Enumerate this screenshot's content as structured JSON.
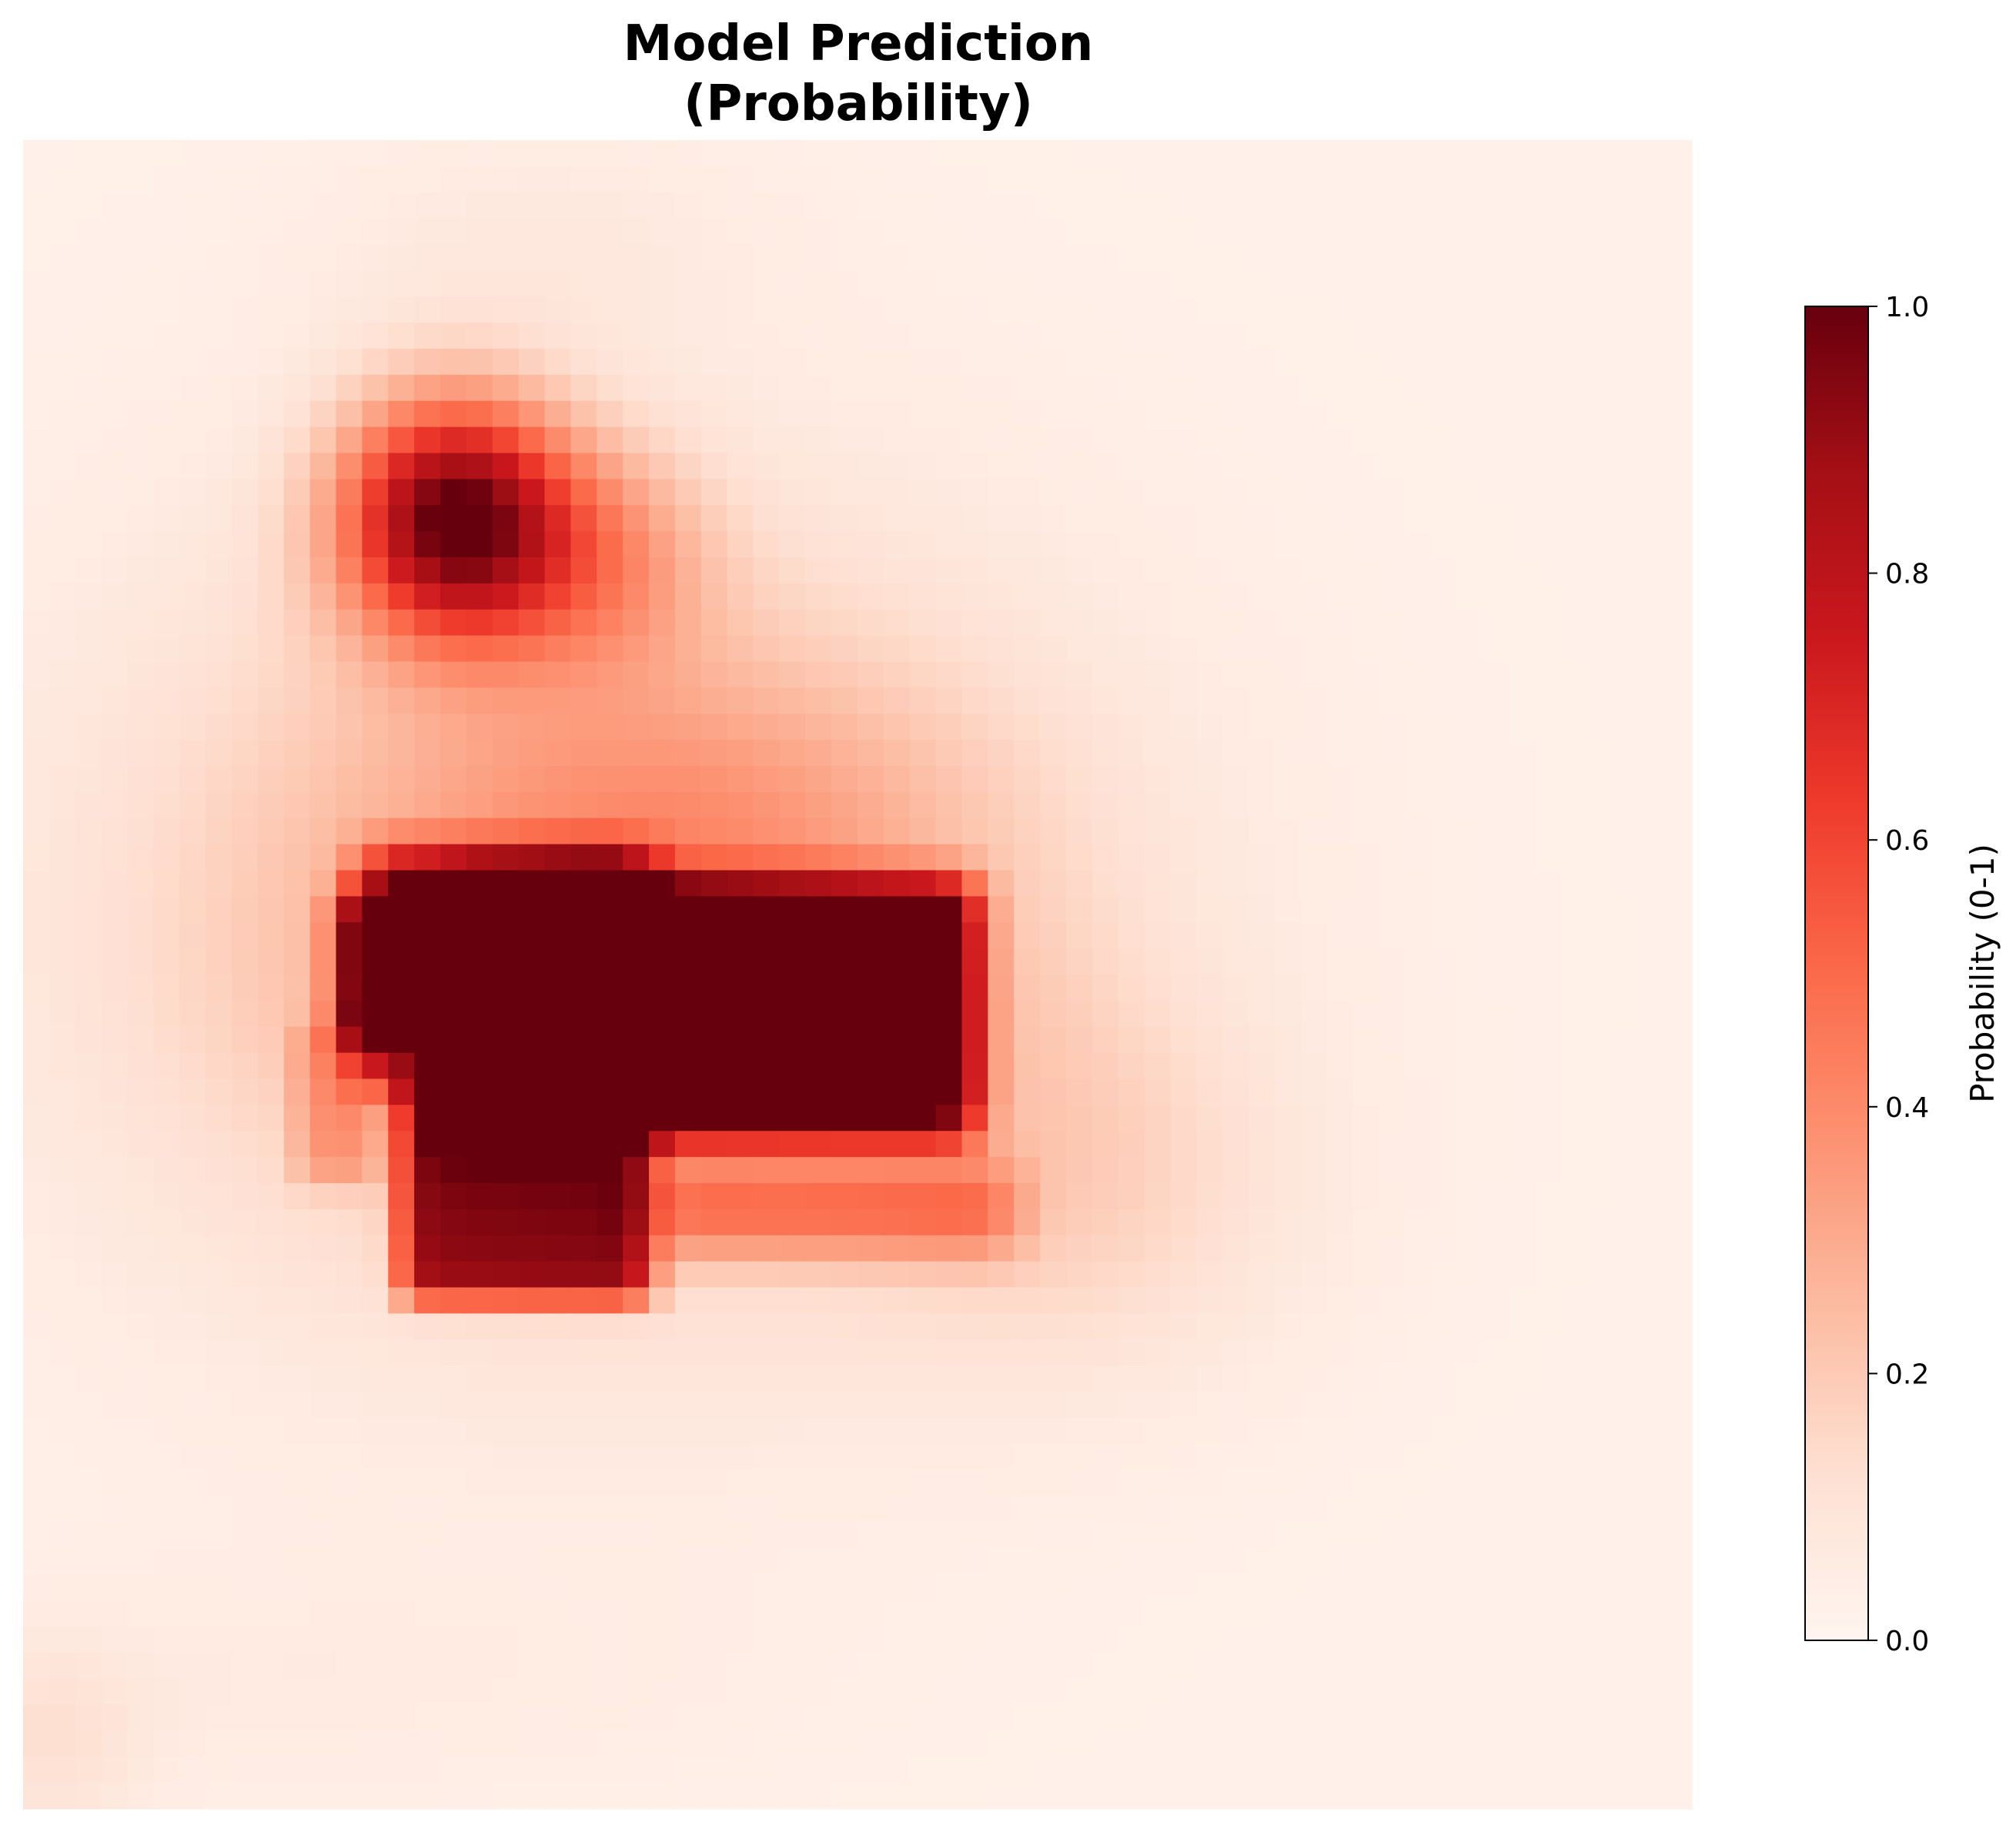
{
  "chart_data": {
    "type": "heatmap",
    "title_lines": [
      "Model Prediction",
      "(Probability)"
    ],
    "grid": {
      "rows": 64,
      "cols": 64
    },
    "axes_visible": false,
    "colormap": {
      "name": "Reds",
      "stops": [
        "#fff5f0",
        "#fee0d2",
        "#fcbba1",
        "#fc9272",
        "#fb6a4a",
        "#ef3b2c",
        "#cb181d",
        "#a50f15",
        "#67000d"
      ]
    },
    "value_range": [
      0,
      1
    ],
    "colorbar": {
      "label": "Probability (0-1)",
      "ticks": [
        "0.0",
        "0.2",
        "0.4",
        "0.6",
        "0.8",
        "1.0"
      ],
      "tick_values": [
        0,
        0.2,
        0.4,
        0.6,
        0.8,
        1.0
      ],
      "placement": "right"
    },
    "regions_description_values": {
      "background": 0.03,
      "top_blob_peak": 0.93,
      "main_blob_peak": 1.0,
      "lower_arm": 0.8
    }
  }
}
